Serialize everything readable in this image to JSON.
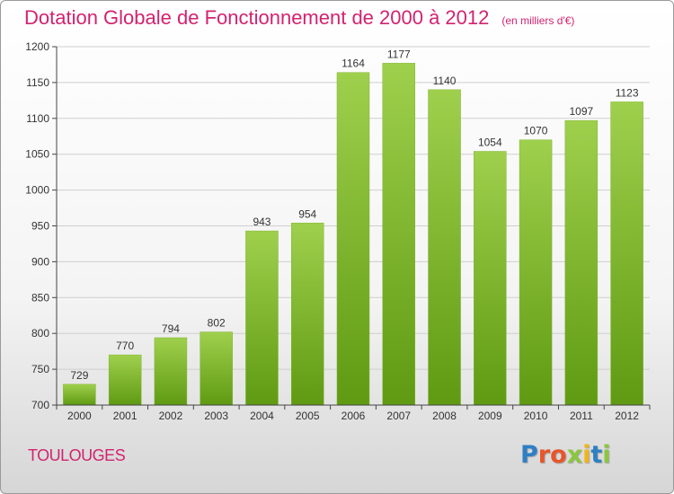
{
  "header": {
    "title": "Dotation Globale de Fonctionnement de 2000 à 2012",
    "unit": "(en milliers d'€)"
  },
  "footer": {
    "commune": "TOULOUGES",
    "logo_letters": [
      {
        "ch": "P",
        "color": "#2e7fc4"
      },
      {
        "ch": "r",
        "color": "#e8552a"
      },
      {
        "ch": "o",
        "color": "#e8552a"
      },
      {
        "ch": "x",
        "color": "#8cc63f"
      },
      {
        "ch": "i",
        "color": "#f2b517"
      },
      {
        "ch": "t",
        "color": "#2e7fc4"
      },
      {
        "ch": "i",
        "color": "#8cc63f"
      }
    ]
  },
  "chart_data": {
    "type": "bar",
    "title": "Dotation Globale de Fonctionnement de 2000 à 2012",
    "subtitle": "(en milliers d'€)",
    "xlabel": "",
    "ylabel": "",
    "categories": [
      "2000",
      "2001",
      "2002",
      "2003",
      "2004",
      "2005",
      "2006",
      "2007",
      "2008",
      "2009",
      "2010",
      "2011",
      "2012"
    ],
    "values": [
      729,
      770,
      794,
      802,
      943,
      954,
      1164,
      1177,
      1140,
      1054,
      1070,
      1097,
      1123
    ],
    "data_labels": [
      "729",
      "770",
      "794",
      "802",
      "943",
      "954",
      "1164",
      "1177",
      "1140",
      "1054",
      "1070",
      "1097",
      "1123"
    ],
    "ylim": [
      700,
      1200
    ],
    "yticks": [
      700,
      750,
      800,
      850,
      900,
      950,
      1000,
      1050,
      1100,
      1150,
      1200
    ],
    "grid": true,
    "legend": "none",
    "colors": {
      "bar_top": "#9fd04d",
      "bar_bottom": "#5f9a12",
      "grid": "#cfcfcf"
    }
  }
}
